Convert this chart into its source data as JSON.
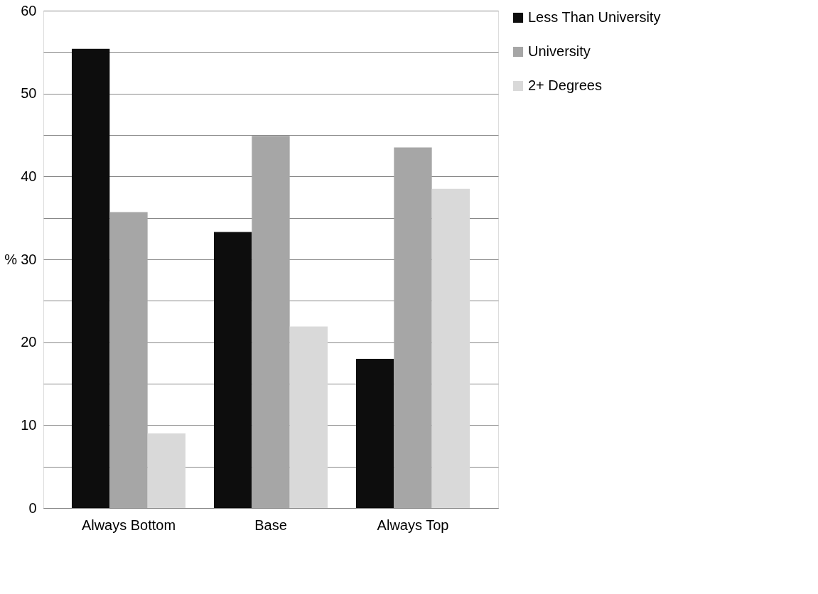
{
  "chart_data": {
    "type": "bar",
    "categories": [
      "Always Bottom",
      "Base",
      "Always Top"
    ],
    "series": [
      {
        "name": "Less Than University",
        "color": "#0d0d0d",
        "values": [
          55.4,
          33.3,
          18.0
        ]
      },
      {
        "name": "University",
        "color": "#a6a6a6",
        "values": [
          35.7,
          44.9,
          43.5
        ]
      },
      {
        "name": "2+ Degrees",
        "color": "#d9d9d9",
        "values": [
          9.0,
          21.9,
          38.5
        ]
      }
    ],
    "ylabel": "%",
    "ylim": [
      0,
      60
    ],
    "yticks": [
      0,
      {
        "value": 5,
        "label": null
      },
      10,
      {
        "value": 15,
        "label": null
      },
      20,
      {
        "value": 25,
        "label": null
      },
      30,
      {
        "value": 35,
        "label": null
      },
      40,
      {
        "value": 45,
        "label": null
      },
      50,
      {
        "value": 55,
        "label": null
      },
      60
    ],
    "grid": "y",
    "legend": "right"
  }
}
